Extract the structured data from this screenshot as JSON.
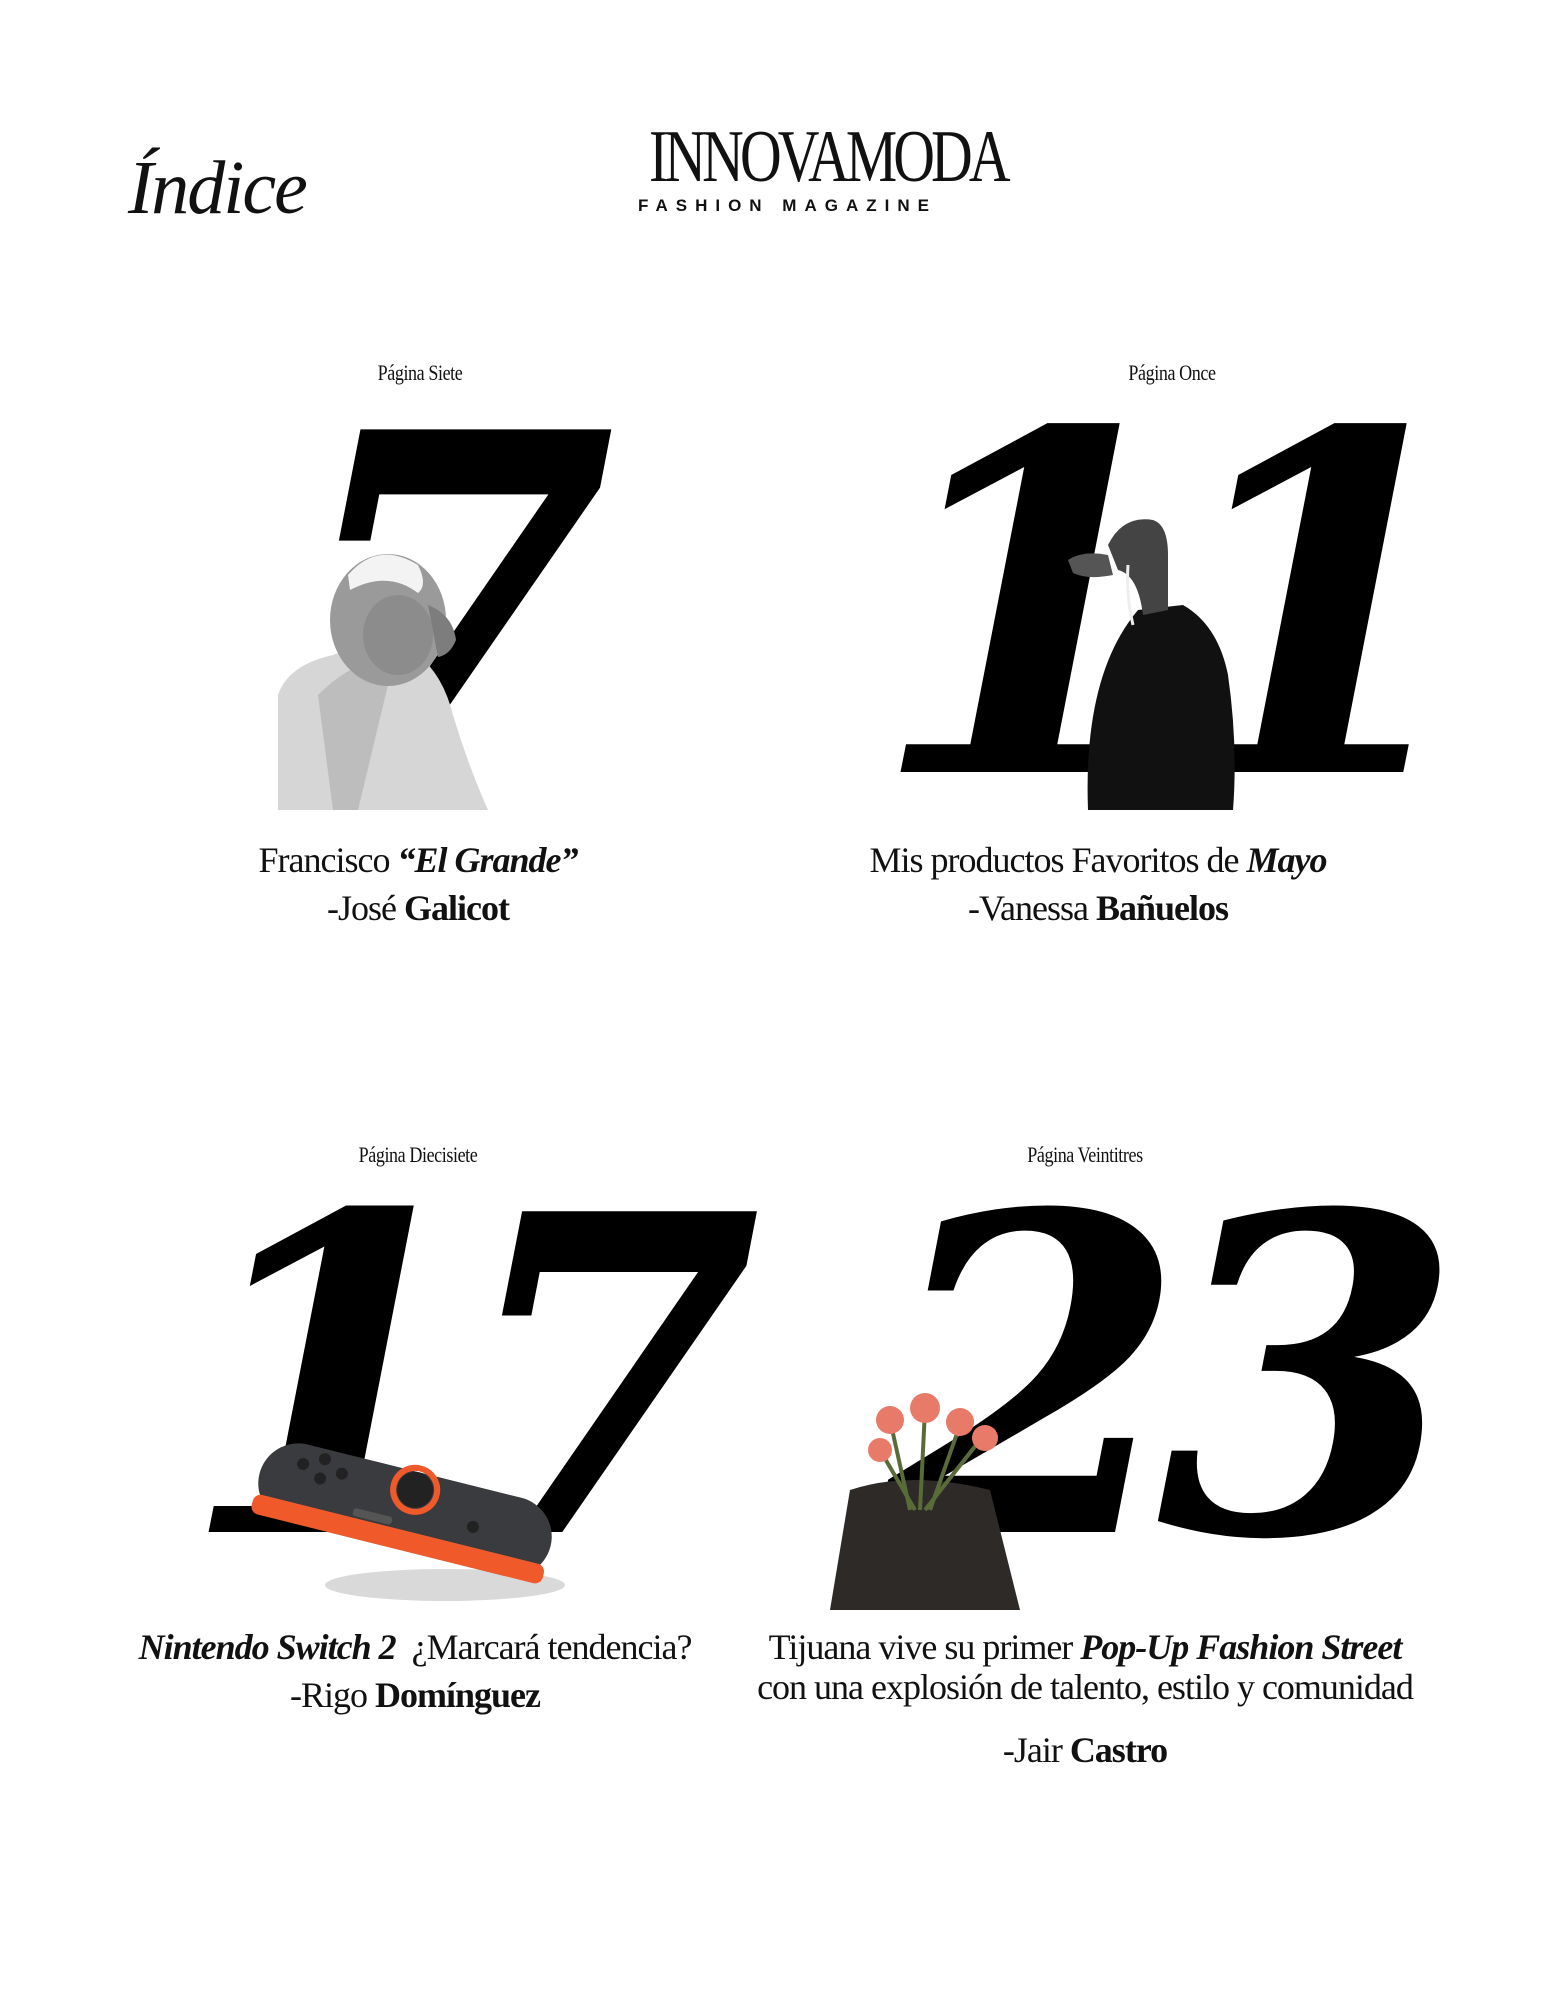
{
  "header": {
    "indice_title": "Índice",
    "brand_name": "INNOVAMODA",
    "brand_tagline": "FASHION MAGAZINE"
  },
  "entries": [
    {
      "page_label": "Página Siete",
      "page_number": "7",
      "title_plain": "Francisco ",
      "title_emphasis": "“El Grande”",
      "author_prefix": "-José ",
      "author_surname": "Galicot"
    },
    {
      "page_label": "Página Once",
      "page_number": "11",
      "title_plain": "Mis productos Favoritos de ",
      "title_emphasis": "Mayo",
      "author_prefix": "-Vanessa ",
      "author_surname": "Bañuelos"
    },
    {
      "page_label": "Página Diecisiete",
      "page_number": "17",
      "title_emphasis": "Nintendo Switch 2",
      "title_plain": "¿Marcará tendencia?",
      "author_prefix": "-Rigo ",
      "author_surname": "Domínguez"
    },
    {
      "page_label": "Página Veintitres",
      "page_number": "23",
      "title_plain": "Tijuana vive su primer ",
      "title_emphasis": "Pop-Up Fashion Street",
      "title_line2": "con una explosión de talento, estilo y comunidad",
      "author_prefix": "-Jair ",
      "author_surname": "Castro"
    }
  ],
  "colors": {
    "ink": "#000000",
    "controller_body": "#3a3b3e",
    "controller_accent": "#f05a2a",
    "flower": "#e87a6a"
  }
}
